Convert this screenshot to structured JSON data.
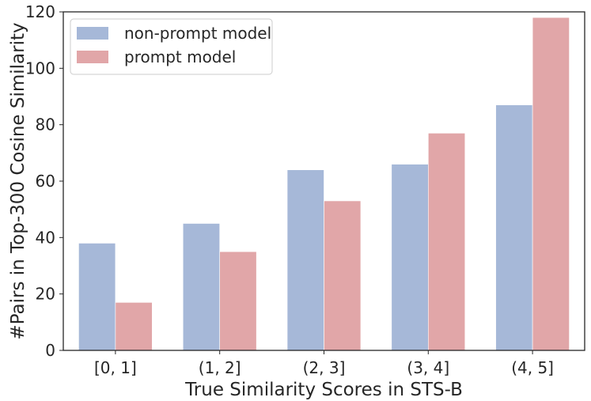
{
  "chart_data": {
    "type": "bar",
    "title": "",
    "xlabel": "True Similarity Scores in STS-B",
    "ylabel": "#Pairs in Top-300 Cosine Similarity",
    "categories": [
      "[0, 1]",
      "(1, 2]",
      "(2, 3]",
      "(3, 4]",
      "(4, 5]"
    ],
    "series": [
      {
        "name": "non-prompt model",
        "values": [
          38,
          45,
          64,
          66,
          87
        ],
        "color": "#a6b8d8"
      },
      {
        "name": "prompt model",
        "values": [
          17,
          35,
          53,
          77,
          118
        ],
        "color": "#e1a6a8"
      }
    ],
    "ylim": [
      0,
      120
    ],
    "yticks": [
      0,
      20,
      40,
      60,
      80,
      100,
      120
    ],
    "grid": false,
    "legend_position": "top-left"
  }
}
